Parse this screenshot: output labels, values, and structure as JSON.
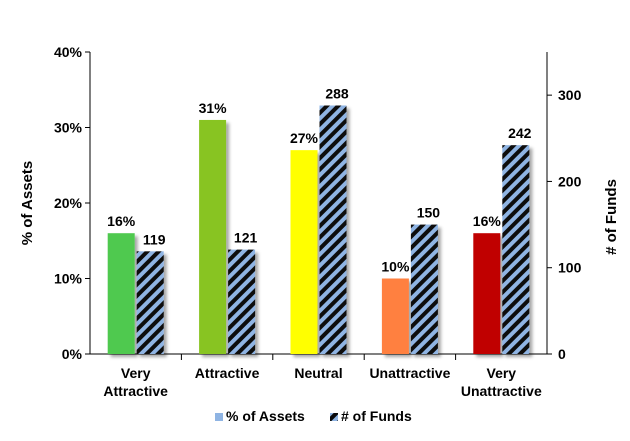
{
  "chart_data": {
    "type": "bar",
    "categories": [
      "Very\nAttractive",
      "Attractive",
      "Neutral",
      "Unattractive",
      "Very\nUnattractive"
    ],
    "series": [
      {
        "name": "% of Assets",
        "axis": "left",
        "values": [
          16,
          31,
          27,
          10,
          16
        ],
        "labels": [
          "16%",
          "31%",
          "27%",
          "10%",
          "16%"
        ],
        "colors": [
          "#4fc94f",
          "#88c424",
          "#ffff00",
          "#ff8040",
          "#c00000"
        ]
      },
      {
        "name": "# of Funds",
        "axis": "right",
        "values": [
          119,
          121,
          288,
          150,
          242
        ],
        "labels": [
          "119",
          "121",
          "288",
          "150",
          "242"
        ],
        "fill": "hatched",
        "colors": [
          "#0a0a0a",
          "#8fb4e3"
        ]
      }
    ],
    "ylabel_left": "% of Assets",
    "ylabel_right": "# of Funds",
    "ylim_left": [
      0,
      40
    ],
    "ylim_right": [
      0,
      350
    ],
    "yticks_left": [
      "0%",
      "10%",
      "20%",
      "30%",
      "40%"
    ],
    "yticks_right": [
      "0",
      "100",
      "200",
      "300"
    ],
    "legend": {
      "position": "bottom",
      "items": [
        {
          "label": "% of Assets",
          "color": "#8fb4e3",
          "pattern": "solid"
        },
        {
          "label": "# of Funds",
          "color": "#8fb4e3",
          "pattern": "hatched"
        }
      ]
    },
    "grid": false
  }
}
